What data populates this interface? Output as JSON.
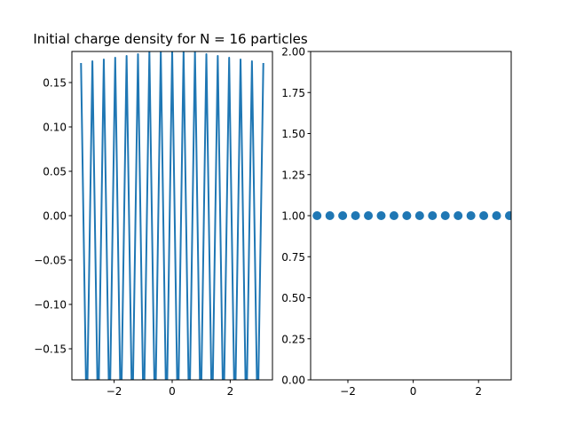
{
  "chart_data": [
    {
      "type": "line",
      "title": "Initial charge density for N = 16 particles",
      "xlabel": "",
      "ylabel": "",
      "xlim": [
        -3.456,
        3.456
      ],
      "ylim": [
        -0.185,
        0.185
      ],
      "xticks": [
        -2,
        0,
        2
      ],
      "xtick_labels": [
        "−2",
        "0",
        "2"
      ],
      "yticks": [
        -0.15,
        -0.1,
        -0.05,
        0,
        0.05,
        0.1,
        0.15
      ],
      "ytick_labels": [
        "−0.15",
        "−0.10",
        "−0.05",
        "0.00",
        "0.05",
        "0.10",
        "0.15"
      ],
      "grid": false,
      "series": [
        {
          "color": "#1f77b4",
          "x": [
            -3.1416,
            -2.9452,
            -2.7489,
            -2.5525,
            -2.3562,
            -2.1598,
            -1.9635,
            -1.7671,
            -1.5708,
            -1.3744,
            -1.1781,
            -0.9817,
            -0.7854,
            -0.589,
            -0.3927,
            -0.1963,
            0,
            0.1963,
            0.3927,
            0.589,
            0.7854,
            0.9817,
            1.1781,
            1.3744,
            1.5708,
            1.7671,
            1.9635,
            2.1598,
            2.3562,
            2.5525,
            2.7489,
            2.9452,
            3.1416
          ],
          "y": [
            0.172,
            -0.24,
            0.174,
            -0.24,
            0.176,
            -0.24,
            0.178,
            -0.24,
            0.18,
            -0.24,
            0.182,
            -0.24,
            0.185,
            -0.24,
            0.185,
            -0.24,
            0.186,
            -0.24,
            0.185,
            -0.24,
            0.185,
            -0.24,
            0.182,
            -0.24,
            0.18,
            -0.24,
            0.178,
            -0.24,
            0.176,
            -0.24,
            0.174,
            -0.24,
            0.172
          ]
        }
      ]
    },
    {
      "type": "scatter",
      "title": "",
      "xlabel": "",
      "ylabel": "",
      "xlim": [
        -3.141593,
        3.0
      ],
      "ylim": [
        0,
        2
      ],
      "xticks": [
        -2,
        0,
        2
      ],
      "xtick_labels": [
        "−2",
        "0",
        "2"
      ],
      "yticks": [
        0,
        0.25,
        0.5,
        0.75,
        1.0,
        1.25,
        1.5,
        1.75,
        2.0
      ],
      "ytick_labels": [
        "0.00",
        "0.25",
        "0.50",
        "0.75",
        "1.00",
        "1.25",
        "1.50",
        "1.75",
        "2.00"
      ],
      "grid": false,
      "series": [
        {
          "color": "#1f77b4",
          "x": [
            -2.9452,
            -2.5525,
            -2.1598,
            -1.7671,
            -1.3744,
            -0.9817,
            -0.589,
            -0.1963,
            0.1963,
            0.589,
            0.9817,
            1.3744,
            1.7671,
            2.1598,
            2.5525,
            2.9452
          ],
          "y": [
            1,
            1,
            1,
            1,
            1,
            1,
            1,
            1,
            1,
            1,
            1,
            1,
            1,
            1,
            1,
            1
          ]
        }
      ]
    }
  ]
}
